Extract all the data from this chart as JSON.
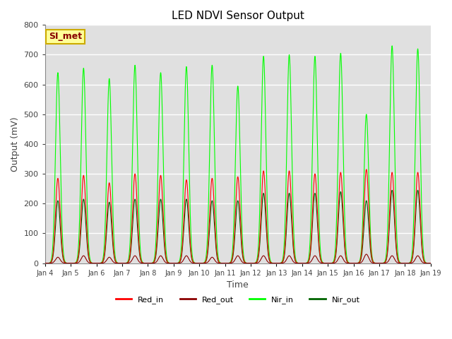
{
  "title": "LED NDVI Sensor Output",
  "xlabel": "Time",
  "ylabel": "Output (mV)",
  "ylim": [
    0,
    800
  ],
  "xlim_days": [
    4,
    19
  ],
  "annotation_text": "SI_met",
  "annotation_bg": "#FFFF99",
  "annotation_border": "#CCAA00",
  "annotation_text_color": "#880000",
  "grid_color": "white",
  "plot_bg": "#E0E0E0",
  "tick_labels": [
    "Jan 4",
    "Jan 5",
    "Jan 6",
    "Jan 7",
    "Jan 8",
    "Jan 9",
    "Jan 10",
    "Jan 11",
    "Jan 12",
    "Jan 13",
    "Jan 14",
    "Jan 15",
    "Jan 16",
    "Jan 17",
    "Jan 18",
    "Jan 19"
  ],
  "legend_entries": [
    "Red_in",
    "Red_out",
    "Nir_in",
    "Nir_out"
  ],
  "legend_colors": [
    "#FF0000",
    "#8B0000",
    "#00FF00",
    "#006400"
  ],
  "pulse_days": [
    4.5,
    5.5,
    6.5,
    7.5,
    8.5,
    9.5,
    10.5,
    11.5,
    12.5,
    13.5,
    14.5,
    15.5,
    16.5,
    17.5,
    18.5
  ],
  "red_in_peaks": [
    285,
    295,
    270,
    300,
    295,
    280,
    285,
    290,
    310,
    310,
    300,
    305,
    315,
    305,
    305
  ],
  "red_out_peaks": [
    20,
    25,
    20,
    25,
    25,
    25,
    20,
    25,
    25,
    25,
    25,
    25,
    30,
    25,
    25
  ],
  "nir_in_peaks": [
    640,
    655,
    620,
    665,
    640,
    660,
    665,
    595,
    695,
    700,
    695,
    705,
    500,
    730,
    720
  ],
  "nir_out_peaks": [
    210,
    215,
    205,
    215,
    215,
    215,
    210,
    210,
    235,
    235,
    235,
    240,
    210,
    245,
    245
  ],
  "pulse_sigma": 0.09
}
